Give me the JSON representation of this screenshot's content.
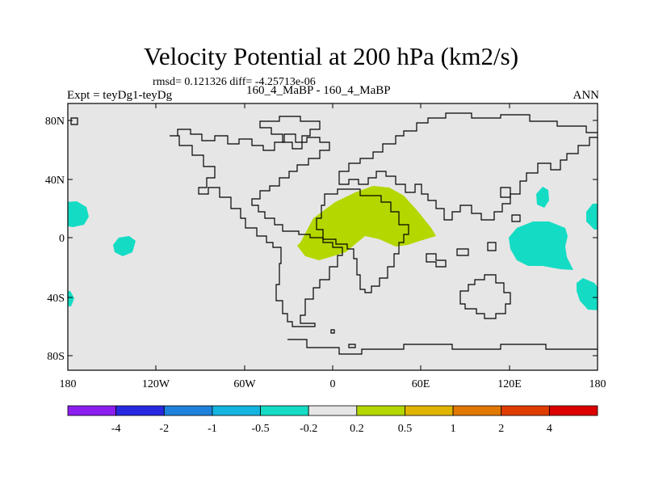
{
  "title": "Velocity Potential at 200 hPa (km2/s)",
  "stats": "rmsd= 0.121326 diff= -4.25713e-06",
  "experiment": "Expt = teyDg1-teyDg",
  "cases": "160_4_MaBP - 160_4_MaBP",
  "season": "ANN",
  "colors": {
    "background": "#e6e6e6",
    "coastline": "#000000",
    "positive_fill": "#b4d700",
    "negative_fill": "#14dcc4"
  },
  "map": {
    "lat_ticks": [
      "80N",
      "40N",
      "0",
      "40S",
      "80S"
    ],
    "lon_ticks": [
      "180",
      "120W",
      "60W",
      "0",
      "60E",
      "120E",
      "180"
    ]
  },
  "colorbar": {
    "colors": [
      "#8c1ef0",
      "#2828e1",
      "#1e82dc",
      "#14b4e1",
      "#14dcc4",
      "#e6e6e6",
      "#b4d700",
      "#e1b400",
      "#e17800",
      "#e13c00",
      "#dc0000"
    ],
    "labels": [
      "-4",
      "-2",
      "-1",
      "-0.5",
      "-0.2",
      "0.2",
      "0.5",
      "1",
      "2",
      "4"
    ]
  }
}
